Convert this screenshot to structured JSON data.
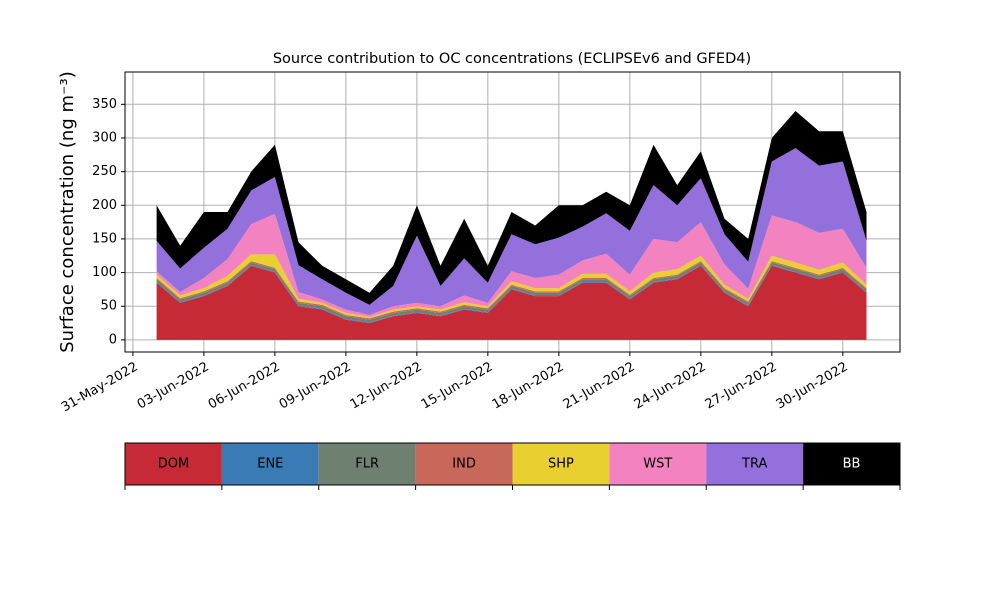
{
  "chart_data": {
    "type": "stacked_area",
    "title": "Source contribution to OC concentrations (ECLIPSEv6 and GFED4)",
    "y_label": "Surface concentration (ng m⁻³)",
    "x": [
      "2022-06-01",
      "2022-06-02",
      "2022-06-03",
      "2022-06-04",
      "2022-06-05",
      "2022-06-06",
      "2022-06-07",
      "2022-06-08",
      "2022-06-09",
      "2022-06-10",
      "2022-06-11",
      "2022-06-12",
      "2022-06-13",
      "2022-06-14",
      "2022-06-15",
      "2022-06-16",
      "2022-06-17",
      "2022-06-18",
      "2022-06-19",
      "2022-06-20",
      "2022-06-21",
      "2022-06-22",
      "2022-06-23",
      "2022-06-24",
      "2022-06-25",
      "2022-06-26",
      "2022-06-27",
      "2022-06-28",
      "2022-06-29",
      "2022-06-30",
      "2022-07-01"
    ],
    "series": [
      {
        "name": "DOM",
        "color": "#c52a36",
        "values": [
          85,
          55,
          65,
          80,
          110,
          100,
          50,
          45,
          30,
          25,
          35,
          40,
          35,
          45,
          40,
          75,
          65,
          65,
          85,
          85,
          60,
          85,
          90,
          110,
          70,
          50,
          110,
          100,
          90,
          100,
          70
        ]
      },
      {
        "name": "ENE",
        "color": "#3a7ab5",
        "values": [
          1,
          1,
          1,
          1,
          1,
          1,
          1,
          1,
          1,
          1,
          1,
          1,
          1,
          1,
          1,
          1,
          1,
          1,
          1,
          1,
          1,
          1,
          1,
          1,
          1,
          1,
          1,
          1,
          1,
          1,
          1
        ]
      },
      {
        "name": "FLR",
        "color": "#6e8070",
        "values": [
          4,
          4,
          4,
          4,
          4,
          4,
          4,
          4,
          4,
          4,
          4,
          4,
          4,
          4,
          4,
          4,
          4,
          4,
          4,
          4,
          4,
          4,
          4,
          4,
          4,
          4,
          4,
          4,
          4,
          4,
          4
        ]
      },
      {
        "name": "IND",
        "color": "#c8685a",
        "values": [
          2,
          2,
          2,
          2,
          2,
          2,
          2,
          2,
          2,
          2,
          2,
          2,
          2,
          2,
          2,
          2,
          2,
          2,
          2,
          2,
          2,
          2,
          2,
          2,
          2,
          2,
          2,
          2,
          2,
          2,
          2
        ]
      },
      {
        "name": "SHP",
        "color": "#e8d030",
        "values": [
          5,
          4,
          5,
          8,
          10,
          20,
          4,
          3,
          3,
          2,
          3,
          3,
          3,
          4,
          3,
          5,
          5,
          5,
          6,
          6,
          5,
          8,
          8,
          8,
          5,
          4,
          8,
          8,
          7,
          8,
          5
        ]
      },
      {
        "name": "WST",
        "color": "#f283c0",
        "values": [
          5,
          5,
          15,
          25,
          45,
          60,
          10,
          5,
          5,
          3,
          5,
          5,
          5,
          10,
          5,
          15,
          15,
          20,
          20,
          30,
          25,
          50,
          40,
          50,
          30,
          15,
          60,
          60,
          55,
          50,
          25
        ]
      },
      {
        "name": "TRA",
        "color": "#9370db",
        "values": [
          45,
          35,
          45,
          45,
          50,
          55,
          40,
          30,
          25,
          15,
          30,
          100,
          30,
          55,
          30,
          55,
          50,
          55,
          50,
          60,
          65,
          80,
          55,
          65,
          45,
          40,
          80,
          110,
          100,
          100,
          40
        ]
      },
      {
        "name": "BB",
        "color": "#000000",
        "values": [
          53,
          34,
          53,
          25,
          28,
          48,
          34,
          20,
          20,
          18,
          30,
          45,
          30,
          59,
          25,
          33,
          28,
          48,
          32,
          32,
          38,
          60,
          30,
          40,
          23,
          34,
          35,
          55,
          51,
          45,
          43
        ]
      }
    ],
    "xlim": [
      "2022-05-30T16:00:00Z",
      "2022-07-02T10:00:00Z"
    ],
    "xticks": [
      {
        "value": "2022-05-31",
        "label": "31-May-2022"
      },
      {
        "value": "2022-06-03",
        "label": "03-Jun-2022"
      },
      {
        "value": "2022-06-06",
        "label": "06-Jun-2022"
      },
      {
        "value": "2022-06-09",
        "label": "09-Jun-2022"
      },
      {
        "value": "2022-06-12",
        "label": "12-Jun-2022"
      },
      {
        "value": "2022-06-15",
        "label": "15-Jun-2022"
      },
      {
        "value": "2022-06-18",
        "label": "18-Jun-2022"
      },
      {
        "value": "2022-06-21",
        "label": "21-Jun-2022"
      },
      {
        "value": "2022-06-24",
        "label": "24-Jun-2022"
      },
      {
        "value": "2022-06-27",
        "label": "27-Jun-2022"
      },
      {
        "value": "2022-06-30",
        "label": "30-Jun-2022"
      }
    ],
    "ylim": [
      -18,
      398
    ],
    "yticks": [
      0,
      50,
      100,
      150,
      200,
      250,
      300,
      350
    ],
    "grid": true
  }
}
